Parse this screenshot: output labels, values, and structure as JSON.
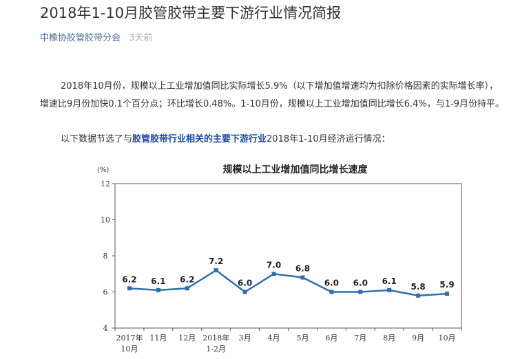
{
  "article": {
    "title": "2018年1-10月胶管胶带主要下游行业情况简报",
    "author": "中橡协胶管胶带分会",
    "time": "3天前",
    "paragraph1": "2018年10月份，规模以上工业增加值同比实际增长5.9%（以下增加值增速均为扣除价格因素的实际增长率），增速比9月份加快0.1个百分点；环比增长0.48%。1-10月份，规模以上工业增加值同比增长6.4%，与1-9月份持平。",
    "paragraph2_prefix": "以下数据节选了与",
    "paragraph2_link": "胶管胶带行业相关的主要下游行业",
    "paragraph2_suffix": "2018年1-10月经济运行情况："
  },
  "colors": {
    "line": "#2e6db4",
    "axis": "#555555",
    "link": "#1b4aa5",
    "author": "#4a6a95"
  },
  "chart_data": {
    "type": "line",
    "title": "规模以上工业增加值同比增长速度",
    "unit_label": "(%)",
    "ylim": [
      4,
      12
    ],
    "yticks": [
      4,
      6,
      8,
      10,
      12
    ],
    "categories": [
      [
        "2017年",
        "10月"
      ],
      [
        "11月"
      ],
      [
        "12月"
      ],
      [
        "2018年",
        "1-2月"
      ],
      [
        "3月"
      ],
      [
        "4月"
      ],
      [
        "5月"
      ],
      [
        "6月"
      ],
      [
        "7月"
      ],
      [
        "8月"
      ],
      [
        "9月"
      ],
      [
        "10月"
      ]
    ],
    "values": [
      6.2,
      6.1,
      6.2,
      7.2,
      6.0,
      7.0,
      6.8,
      6.0,
      6.0,
      6.1,
      5.8,
      5.9
    ],
    "data_labels": [
      "6.2",
      "6.1",
      "6.2",
      "7.2",
      "6.0",
      "7.0",
      "6.8",
      "6.0",
      "6.0",
      "6.1",
      "5.8",
      "5.9"
    ],
    "grid": false,
    "legend": "none"
  }
}
